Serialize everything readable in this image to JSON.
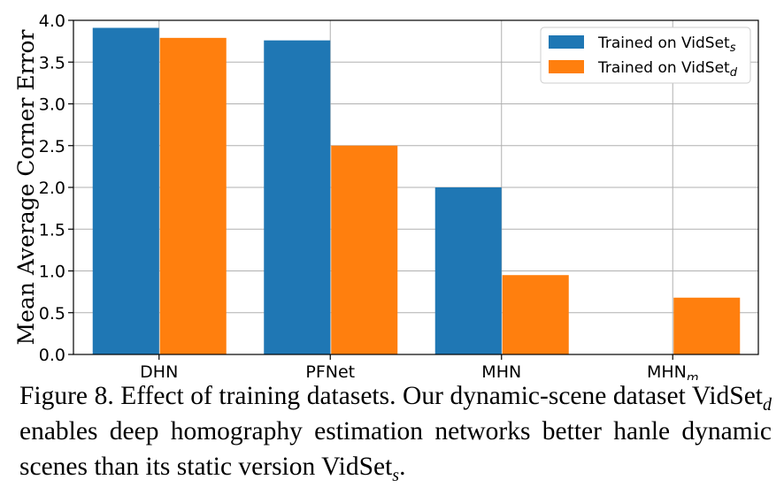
{
  "chart_data": {
    "type": "bar",
    "categories": [
      "DHN",
      "PFNet",
      "MHN",
      "MHN"
    ],
    "category_subscripts": [
      "",
      "",
      "",
      "m"
    ],
    "series": [
      {
        "name": "Trained on VidSet",
        "name_subscript": "s",
        "color": "#1f77b4",
        "values": [
          3.91,
          3.76,
          2.0,
          null
        ]
      },
      {
        "name": "Trained on VidSet",
        "name_subscript": "d",
        "color": "#ff7f0e",
        "values": [
          3.79,
          2.5,
          0.95,
          0.68
        ]
      }
    ],
    "ylabel": "Mean Average Corner Error",
    "ylim": [
      0,
      4.0
    ],
    "yticks": [
      "0.0",
      "0.5",
      "1.0",
      "1.5",
      "2.0",
      "2.5",
      "3.0",
      "3.5",
      "4.0"
    ],
    "grid": true,
    "legend_position": "top-right"
  },
  "caption": {
    "prefix": "Figure 8. Effect of training datasets.  Our dynamic-scene dataset VidSet",
    "sub1": "d",
    "middle": " enables deep homography estimation networks better han­le dynamic scenes than its static version VidSet",
    "sub2": "s",
    "suffix": "."
  }
}
